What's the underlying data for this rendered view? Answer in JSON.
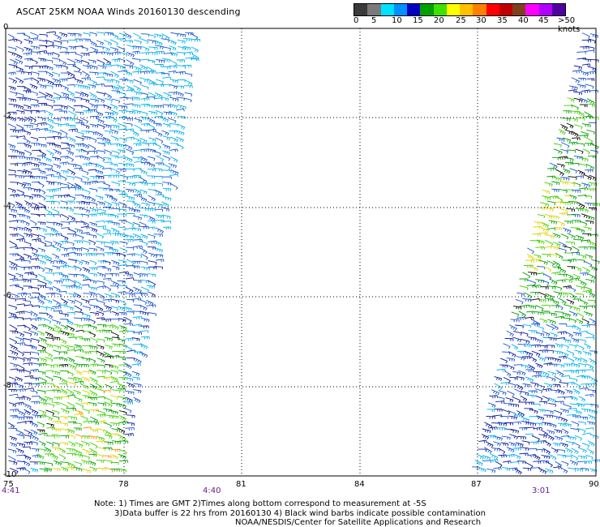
{
  "title": "ASCAT 25KM NOAA Winds 20160130 descending",
  "legend": {
    "labels": [
      "0",
      "5",
      "10",
      "15",
      "20",
      "25",
      "30",
      "35",
      "40",
      "45",
      ">50 knots"
    ],
    "colors": [
      "#3a3a3a",
      "#7a7a7a",
      "#00e0ff",
      "#0090ff",
      "#0000c0",
      "#00a000",
      "#40e000",
      "#ffff00",
      "#ffc000",
      "#ff8000",
      "#ff0000",
      "#c00000",
      "#804020",
      "#ff00ff",
      "#b000ff",
      "#5000a0"
    ]
  },
  "axes": {
    "x_ticks": [
      "75",
      "78",
      "81",
      "84",
      "87",
      "90"
    ],
    "y_ticks": [
      "0",
      "-2",
      "-4",
      "-6",
      "-8",
      "-10"
    ]
  },
  "times": [
    "4:41",
    "4:40",
    "3:01"
  ],
  "notes": {
    "line1": "Note: 1) Times are GMT 2)Times along bottom correspond to measurement at -5S",
    "line2": "3)Data buffer is 22 hrs from 20160130 4) Black wind barbs indicate possible contamination",
    "line3": "NOAA/NESDIS/Center for Satellite Applications and Research"
  },
  "map": {
    "lon_range": [
      75,
      90
    ],
    "lat_range": [
      -10,
      0
    ],
    "wind_colors": {
      "light": "#00b0e8",
      "mid": "#1a55d0",
      "dark": "#0a1a9a",
      "green": "#00a000",
      "lime": "#40d000",
      "yellow": "#e0d000",
      "orange": "#ff9000",
      "black": "#000000"
    }
  }
}
